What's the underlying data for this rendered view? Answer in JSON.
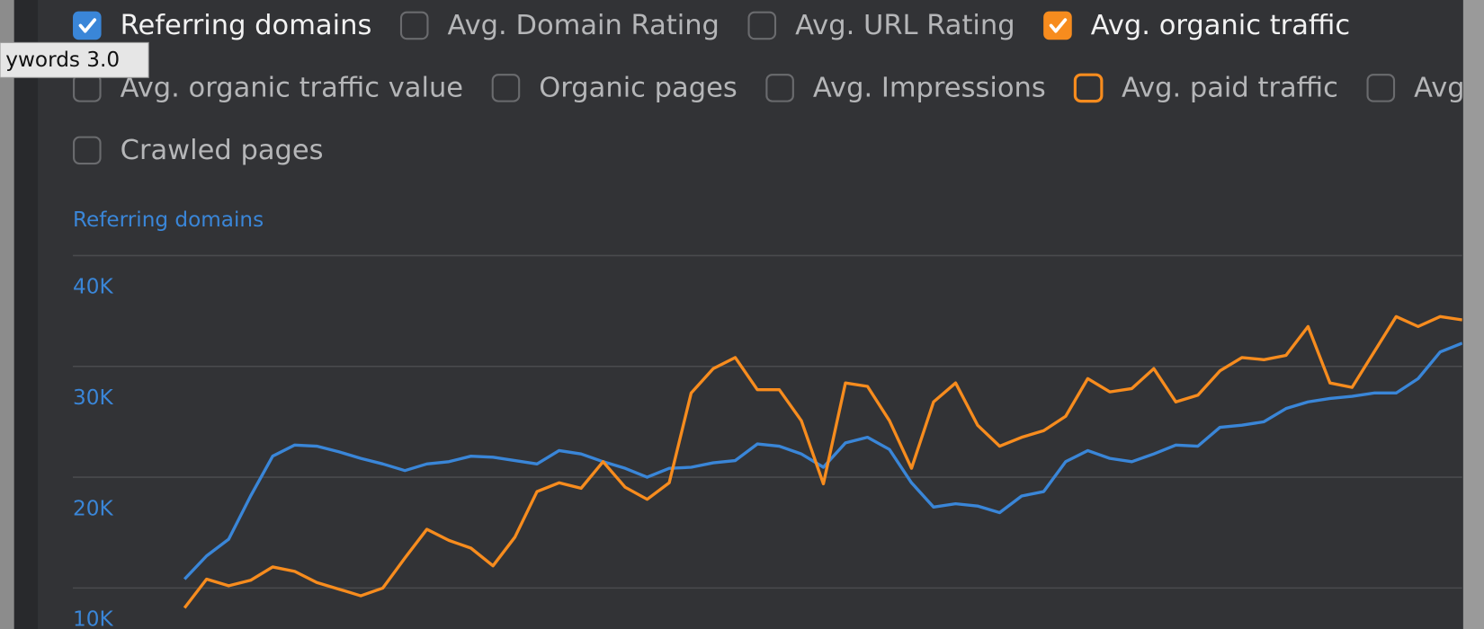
{
  "tooltip": "ywords 3.0",
  "checkbox_rows": [
    [
      {
        "label": "Referring domains",
        "checked": true,
        "color": "#3a86d8"
      },
      {
        "label": "Avg. Domain Rating",
        "checked": false,
        "color": "#6a6b6e"
      },
      {
        "label": "Avg. URL Rating",
        "checked": false,
        "color": "#6a6b6e"
      },
      {
        "label": "Avg. organic traffic",
        "checked": true,
        "color": "#f78c1e"
      }
    ],
    [
      {
        "label": "Avg. organic traffic value",
        "checked": false,
        "color": "#6a6b6e"
      },
      {
        "label": "Organic pages",
        "checked": false,
        "color": "#6a6b6e"
      },
      {
        "label": "Avg. Impressions",
        "checked": false,
        "color": "#6a6b6e"
      },
      {
        "label": "Avg. paid traffic",
        "checked": false,
        "color": "#f78c1e"
      },
      {
        "label": "Avg",
        "checked": false,
        "color": "#6a6b6e"
      }
    ],
    [
      {
        "label": "Crawled pages",
        "checked": false,
        "color": "#6a6b6e"
      }
    ]
  ],
  "chart_data": {
    "type": "line",
    "y_axis_label": "Referring domains",
    "ylim": [
      6300,
      41300
    ],
    "yticks": [
      {
        "value": 10000,
        "label": "10K"
      },
      {
        "value": 20000,
        "label": "20K"
      },
      {
        "value": 30000,
        "label": "30K"
      },
      {
        "value": 40000,
        "label": "40K"
      }
    ],
    "grid": true,
    "series": [
      {
        "name": "Referring domains",
        "color": "#3a86d8",
        "values": [
          10800,
          12900,
          14400,
          18300,
          21900,
          22900,
          22800,
          22300,
          21700,
          21200,
          20600,
          21200,
          21400,
          21900,
          21800,
          21500,
          21200,
          22400,
          22100,
          21400,
          20800,
          20000,
          20800,
          20900,
          21300,
          21500,
          23000,
          22800,
          22100,
          20900,
          23100,
          23600,
          22500,
          19500,
          17300,
          17600,
          17400,
          16800,
          18300,
          18700,
          21400,
          22400,
          21700,
          21400,
          22100,
          22900,
          22800,
          24500,
          24700,
          25000,
          26200,
          26800,
          27100,
          27300,
          27600,
          27600,
          28900,
          31300,
          32100
        ]
      },
      {
        "name": "Avg. organic traffic",
        "color": "#f78c1e",
        "values": [
          8200,
          10800,
          10200,
          10700,
          11900,
          11500,
          10500,
          9900,
          9300,
          10000,
          12700,
          15300,
          14300,
          13600,
          12000,
          14600,
          18700,
          19500,
          19000,
          21400,
          19100,
          18000,
          19500,
          27600,
          29800,
          30800,
          27900,
          27900,
          25100,
          19400,
          28500,
          28200,
          25100,
          20800,
          26800,
          28500,
          24700,
          22800,
          23600,
          24200,
          25500,
          28900,
          27700,
          28000,
          29800,
          26800,
          27400,
          29600,
          30800,
          30600,
          31000,
          33600,
          28500,
          28100,
          31300,
          34500,
          33600,
          34500,
          34200
        ]
      }
    ]
  }
}
